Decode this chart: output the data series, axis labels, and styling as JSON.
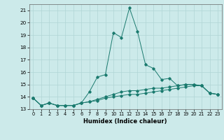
{
  "xlabel": "Humidex (Indice chaleur)",
  "background_color": "#cceaea",
  "line_color": "#1a7a6e",
  "xlim": [
    -0.5,
    23.5
  ],
  "ylim": [
    13,
    21.5
  ],
  "yticks": [
    13,
    14,
    15,
    16,
    17,
    18,
    19,
    20,
    21
  ],
  "xticks": [
    0,
    1,
    2,
    3,
    4,
    5,
    6,
    7,
    8,
    9,
    10,
    11,
    12,
    13,
    14,
    15,
    16,
    17,
    18,
    19,
    20,
    21,
    22,
    23
  ],
  "series": [
    {
      "x": [
        0,
        1,
        2,
        3,
        4,
        5,
        6,
        7,
        8,
        9,
        10,
        11,
        12,
        13,
        14,
        15,
        16,
        17,
        18,
        19,
        20,
        21,
        22,
        23
      ],
      "y": [
        13.9,
        13.3,
        13.5,
        13.3,
        13.3,
        13.3,
        13.5,
        14.4,
        15.6,
        15.8,
        19.2,
        18.8,
        21.2,
        19.3,
        16.6,
        16.3,
        15.4,
        15.5,
        14.9,
        15.0,
        15.0,
        14.9,
        14.3,
        14.2
      ]
    },
    {
      "x": [
        0,
        1,
        2,
        3,
        4,
        5,
        6,
        7,
        8,
        9,
        10,
        11,
        12,
        13,
        14,
        15,
        16,
        17,
        18,
        19,
        20,
        21,
        22,
        23
      ],
      "y": [
        13.9,
        13.3,
        13.5,
        13.3,
        13.3,
        13.3,
        13.5,
        13.6,
        13.7,
        13.9,
        14.0,
        14.1,
        14.2,
        14.2,
        14.3,
        14.4,
        14.5,
        14.6,
        14.7,
        14.8,
        14.9,
        14.9,
        14.3,
        14.2
      ]
    },
    {
      "x": [
        0,
        1,
        2,
        3,
        4,
        5,
        6,
        7,
        8,
        9,
        10,
        11,
        12,
        13,
        14,
        15,
        16,
        17,
        18,
        19,
        20,
        21,
        22,
        23
      ],
      "y": [
        13.9,
        13.3,
        13.5,
        13.3,
        13.3,
        13.3,
        13.5,
        13.6,
        13.8,
        14.0,
        14.2,
        14.4,
        14.5,
        14.5,
        14.6,
        14.7,
        14.7,
        14.8,
        14.9,
        15.0,
        15.0,
        14.9,
        14.3,
        14.2
      ]
    }
  ]
}
